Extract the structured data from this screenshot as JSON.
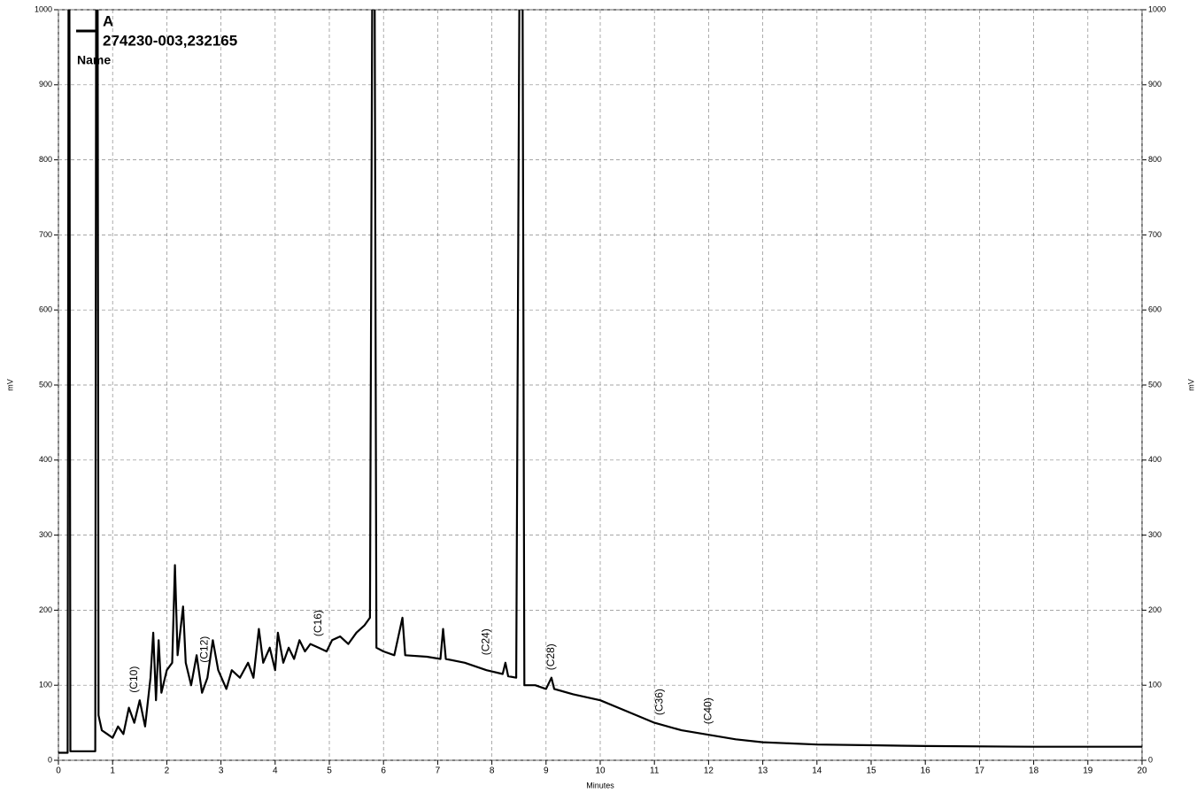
{
  "chart_data": {
    "type": "line",
    "xlabel": "Minutes",
    "ylabel": "mV",
    "y2label": "mV",
    "legend": {
      "title": "A",
      "header": "Name"
    },
    "xlim": [
      0,
      20
    ],
    "xticks": [
      0,
      1,
      2,
      3,
      4,
      5,
      6,
      7,
      8,
      9,
      10,
      11,
      12,
      13,
      14,
      15,
      16,
      17,
      18,
      19,
      20
    ],
    "ylim": [
      0,
      1000
    ],
    "yticks": [
      0,
      100,
      200,
      300,
      400,
      500,
      600,
      700,
      800,
      900,
      1000
    ],
    "y2lim": [
      0,
      1000
    ],
    "y2ticks": [
      0,
      100,
      200,
      300,
      400,
      500,
      600,
      700,
      800,
      900,
      1000
    ],
    "grid": true,
    "series": [
      {
        "name": "274230-003,232165",
        "color": "#000000",
        "x": [
          0,
          0.17,
          0.19,
          0.2,
          0.22,
          0.68,
          0.7,
          0.72,
          0.74,
          0.8,
          0.9,
          1.0,
          1.1,
          1.2,
          1.3,
          1.4,
          1.5,
          1.6,
          1.7,
          1.75,
          1.8,
          1.85,
          1.9,
          2.0,
          2.1,
          2.15,
          2.2,
          2.3,
          2.35,
          2.45,
          2.55,
          2.65,
          2.75,
          2.85,
          2.95,
          3.1,
          3.2,
          3.35,
          3.5,
          3.6,
          3.7,
          3.78,
          3.9,
          4.0,
          4.05,
          4.15,
          4.25,
          4.35,
          4.45,
          4.55,
          4.65,
          4.8,
          4.95,
          5.05,
          5.2,
          5.35,
          5.5,
          5.65,
          5.75,
          5.8,
          5.83,
          5.87,
          6.0,
          6.2,
          6.35,
          6.4,
          6.8,
          7.05,
          7.1,
          7.15,
          7.5,
          7.9,
          8.2,
          8.25,
          8.3,
          8.45,
          8.52,
          8.56,
          8.6,
          8.8,
          9.0,
          9.1,
          9.15,
          9.5,
          10.0,
          10.5,
          11.0,
          11.5,
          12.0,
          12.5,
          13.0,
          14.0,
          15.0,
          16.0,
          18.0,
          20.0
        ],
        "values": [
          10,
          10,
          1200,
          1200,
          12,
          12,
          1200,
          1200,
          60,
          40,
          35,
          30,
          45,
          35,
          70,
          50,
          80,
          45,
          110,
          170,
          80,
          160,
          90,
          120,
          130,
          260,
          140,
          205,
          130,
          100,
          140,
          90,
          110,
          160,
          120,
          95,
          120,
          110,
          130,
          110,
          175,
          130,
          150,
          120,
          170,
          130,
          150,
          135,
          160,
          145,
          155,
          150,
          145,
          160,
          165,
          155,
          170,
          180,
          190,
          1200,
          1200,
          150,
          145,
          140,
          190,
          140,
          138,
          135,
          175,
          135,
          130,
          120,
          115,
          130,
          112,
          110,
          1200,
          1200,
          100,
          100,
          95,
          110,
          95,
          88,
          80,
          65,
          50,
          40,
          34,
          28,
          24,
          21,
          20,
          19,
          18,
          18
        ]
      }
    ],
    "annotations": [
      {
        "text": "(C10)",
        "x": 1.4,
        "y": 90
      },
      {
        "text": "(C12)",
        "x": 2.7,
        "y": 130
      },
      {
        "text": "(C16)",
        "x": 4.8,
        "y": 165
      },
      {
        "text": "(C24)",
        "x": 7.9,
        "y": 140
      },
      {
        "text": "(C28)",
        "x": 9.1,
        "y": 120
      },
      {
        "text": "(C36)",
        "x": 11.1,
        "y": 60
      },
      {
        "text": "(C40)",
        "x": 12.0,
        "y": 48
      }
    ]
  }
}
